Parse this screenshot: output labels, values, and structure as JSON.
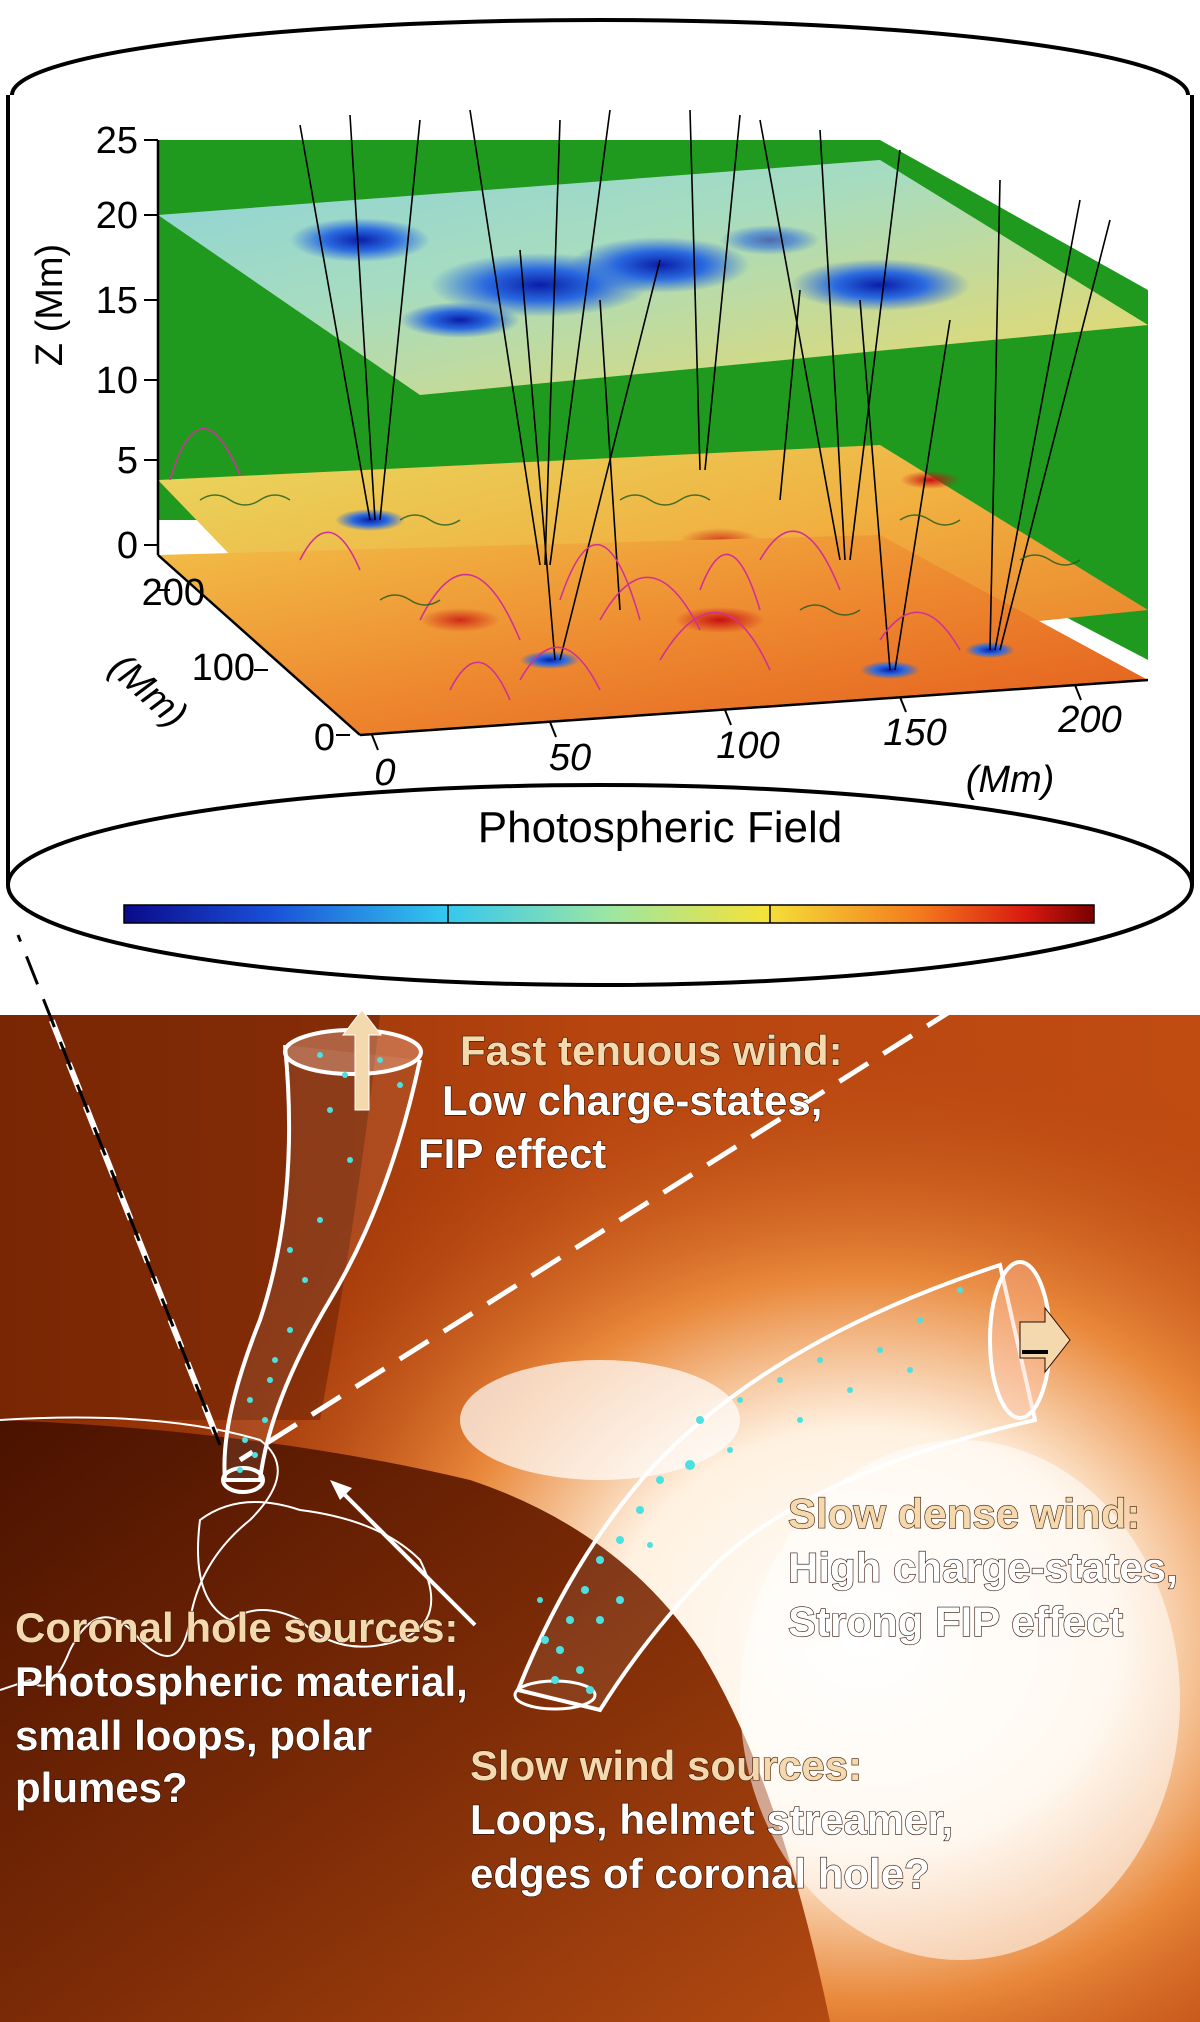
{
  "plot": {
    "z_axis_label": "Z (Mm)",
    "z_ticks": [
      "25",
      "20",
      "15",
      "10",
      "5",
      "0"
    ],
    "y_axis_label": "(Mm)",
    "y_ticks": [
      "200",
      "100",
      "0"
    ],
    "x_ticks": [
      "0",
      "50",
      "100",
      "150",
      "200"
    ],
    "x_axis_label": "(Mm)",
    "title": "Photospheric Field"
  },
  "labels": {
    "fast_header": "Fast tenuous wind:",
    "fast_line1": "Low charge-states,",
    "fast_line2": "FIP effect",
    "slow_dense_header": "Slow dense wind:",
    "slow_dense_line1": "High charge-states,",
    "slow_dense_line2": "Strong FIP effect",
    "coronal_header": "Coronal hole sources:",
    "coronal_line1": "Photospheric material,",
    "coronal_line2": "small loops, polar",
    "coronal_line3": "plumes?",
    "slow_src_header": "Slow wind sources:",
    "slow_src_line1": "Loops, helmet streamer,",
    "slow_src_line2": "edges of coronal hole?"
  },
  "colors": {
    "wall": "#1f9a1f",
    "corona_dark": "#5a1a00",
    "corona_mid": "#b5420f",
    "corona_bright": "#fff4e6",
    "header_text": "#f4d9ae",
    "body_text": "#ffffff",
    "dots": "#4ee0e0",
    "field_lines": "#000000",
    "loops": "#d0309a"
  }
}
